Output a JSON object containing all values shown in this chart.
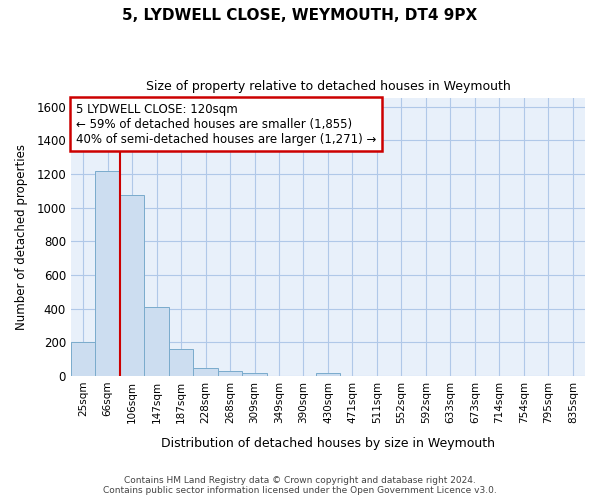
{
  "title": "5, LYDWELL CLOSE, WEYMOUTH, DT4 9PX",
  "subtitle": "Size of property relative to detached houses in Weymouth",
  "xlabel": "Distribution of detached houses by size in Weymouth",
  "ylabel": "Number of detached properties",
  "categories": [
    "25sqm",
    "66sqm",
    "106sqm",
    "147sqm",
    "187sqm",
    "228sqm",
    "268sqm",
    "309sqm",
    "349sqm",
    "390sqm",
    "430sqm",
    "471sqm",
    "511sqm",
    "552sqm",
    "592sqm",
    "633sqm",
    "673sqm",
    "714sqm",
    "754sqm",
    "795sqm",
    "835sqm"
  ],
  "values": [
    200,
    1220,
    1075,
    410,
    160,
    50,
    30,
    20,
    0,
    0,
    20,
    0,
    0,
    0,
    0,
    0,
    0,
    0,
    0,
    0,
    0
  ],
  "bar_color": "#ccddf0",
  "bar_edge_color": "#7aabcc",
  "grid_color": "#b0c8e8",
  "vline_x_idx": 1,
  "vline_color": "#cc0000",
  "annotation_line1": "5 LYDWELL CLOSE: 120sqm",
  "annotation_line2": "← 59% of detached houses are smaller (1,855)",
  "annotation_line3": "40% of semi-detached houses are larger (1,271) →",
  "annotation_box_color": "#ffffff",
  "annotation_box_edge": "#cc0000",
  "ylim": [
    0,
    1650
  ],
  "yticks": [
    0,
    200,
    400,
    600,
    800,
    1000,
    1200,
    1400,
    1600
  ],
  "footer_line1": "Contains HM Land Registry data © Crown copyright and database right 2024.",
  "footer_line2": "Contains public sector information licensed under the Open Government Licence v3.0.",
  "bg_color": "#e8f0fa",
  "fig_bg": "#ffffff"
}
